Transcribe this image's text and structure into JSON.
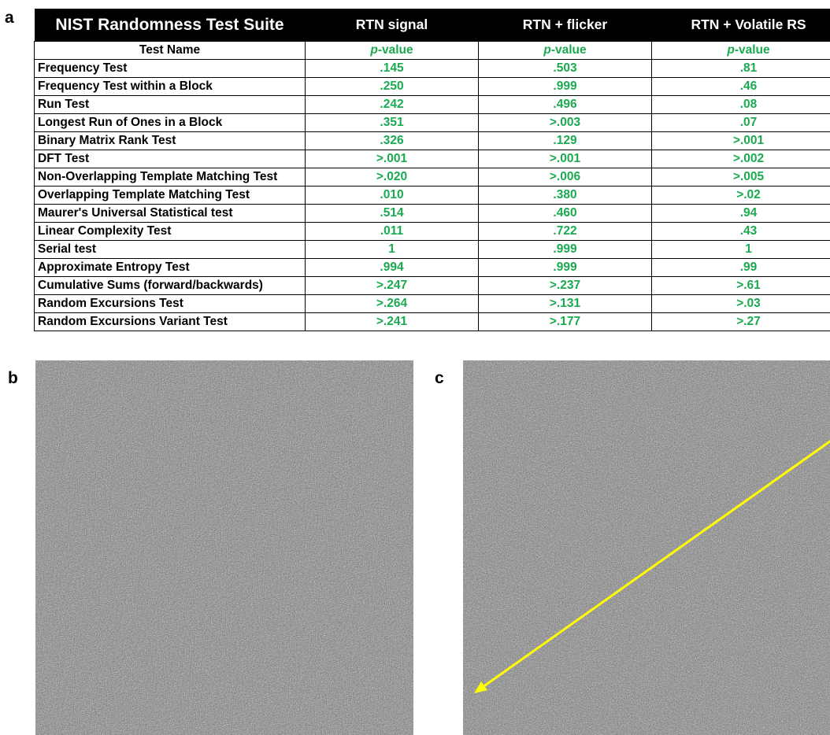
{
  "panels": {
    "a": "a",
    "b": "b",
    "c": "c"
  },
  "table": {
    "headers": [
      "NIST Randomness Test Suite",
      "RTN signal",
      "RTN + flicker",
      "RTN + Volatile RS"
    ],
    "subheader": {
      "name": "Test Name",
      "pvalue_italic": "p",
      "pvalue_rest": "-value"
    },
    "rows": [
      {
        "name": "Frequency Test",
        "v": [
          ".145",
          ".503",
          ".81"
        ]
      },
      {
        "name": "Frequency Test within a Block",
        "v": [
          ".250",
          ".999",
          ".46"
        ]
      },
      {
        "name": "Run Test",
        "v": [
          ".242",
          ".496",
          ".08"
        ]
      },
      {
        "name": "Longest Run of Ones in a Block",
        "v": [
          ".351",
          ">.003",
          ".07"
        ]
      },
      {
        "name": "Binary Matrix Rank Test",
        "v": [
          ".326",
          ".129",
          ">.001"
        ]
      },
      {
        "name": "DFT Test",
        "v": [
          ">.001",
          ">.001",
          ">.002"
        ]
      },
      {
        "name": "Non-Overlapping Template Matching Test",
        "v": [
          ">.020",
          ">.006",
          ">.005"
        ]
      },
      {
        "name": "Overlapping Template Matching Test",
        "v": [
          ".010",
          ".380",
          ">.02"
        ]
      },
      {
        "name": "Maurer's Universal Statistical test",
        "v": [
          ".514",
          ".460",
          ".94"
        ]
      },
      {
        "name": "Linear Complexity Test",
        "v": [
          ".011",
          ".722",
          ".43"
        ]
      },
      {
        "name": "Serial test",
        "v": [
          "1",
          ".999",
          "1"
        ]
      },
      {
        "name": "Approximate Entropy Test",
        "v": [
          ".994",
          ".999",
          ".99"
        ]
      },
      {
        "name": "Cumulative Sums (forward/backwards)",
        "v": [
          ">.247",
          ">.237",
          ">.61"
        ]
      },
      {
        "name": "Random Excursions Test",
        "v": [
          ">.264",
          ">.131",
          ">.03"
        ]
      },
      {
        "name": "Random Excursions Variant Test",
        "v": [
          ">.241",
          ">.177",
          ">.27"
        ]
      }
    ]
  },
  "colors": {
    "header_bg": "#000000",
    "header_text": "#ffffff",
    "pvalue_green": "#1aaa50",
    "arrow_yellow": "#ffff00",
    "noise_gray": "#7d7d7d"
  },
  "images": {
    "b": {
      "content": "random-noise-bitmap"
    },
    "c": {
      "content": "random-noise-bitmap",
      "overlay": "yellow-arrow"
    }
  }
}
